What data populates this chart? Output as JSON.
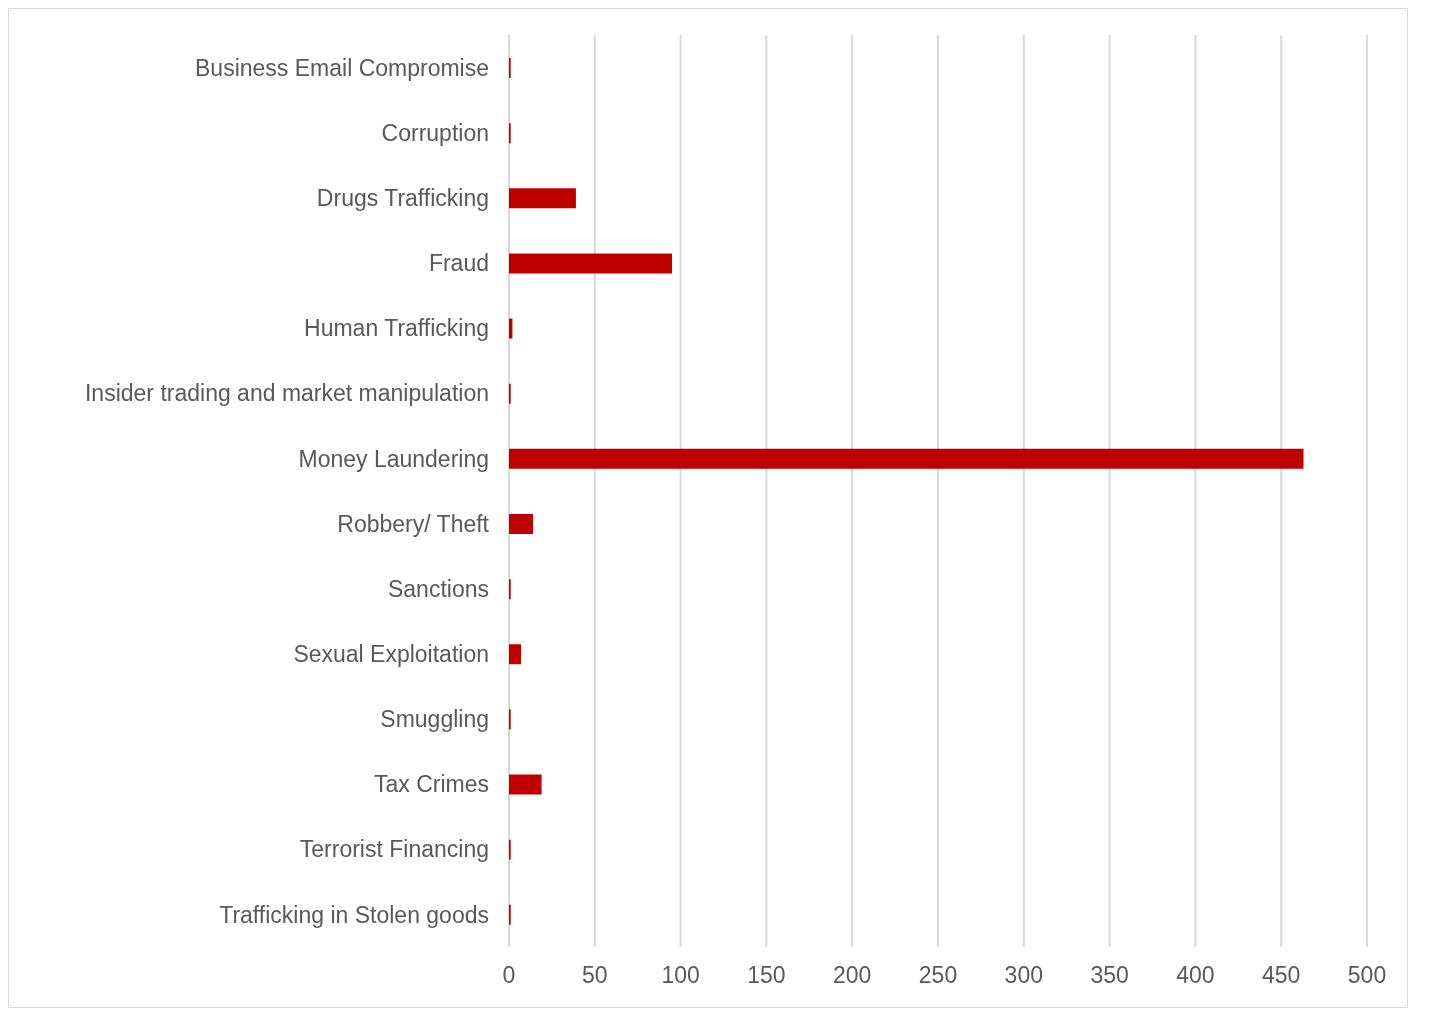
{
  "chart_data": {
    "type": "bar",
    "orientation": "horizontal",
    "categories": [
      "Business Email Compromise",
      "Corruption",
      "Drugs Trafficking",
      "Fraud",
      "Human Trafficking",
      "Insider trading and market manipulation",
      "Money Laundering",
      "Robbery/ Theft",
      "Sanctions",
      "Sexual Exploitation",
      "Smuggling",
      "Tax Crimes",
      "Terrorist Financing",
      "Trafficking in Stolen goods"
    ],
    "values": [
      1,
      1,
      39,
      95,
      2,
      1,
      463,
      14,
      1,
      7,
      1,
      19,
      1,
      1
    ],
    "color": "#c00000",
    "xlim": [
      0,
      500
    ],
    "xticks": [
      0,
      50,
      100,
      150,
      200,
      250,
      300,
      350,
      400,
      450,
      500
    ],
    "grid": "x"
  }
}
